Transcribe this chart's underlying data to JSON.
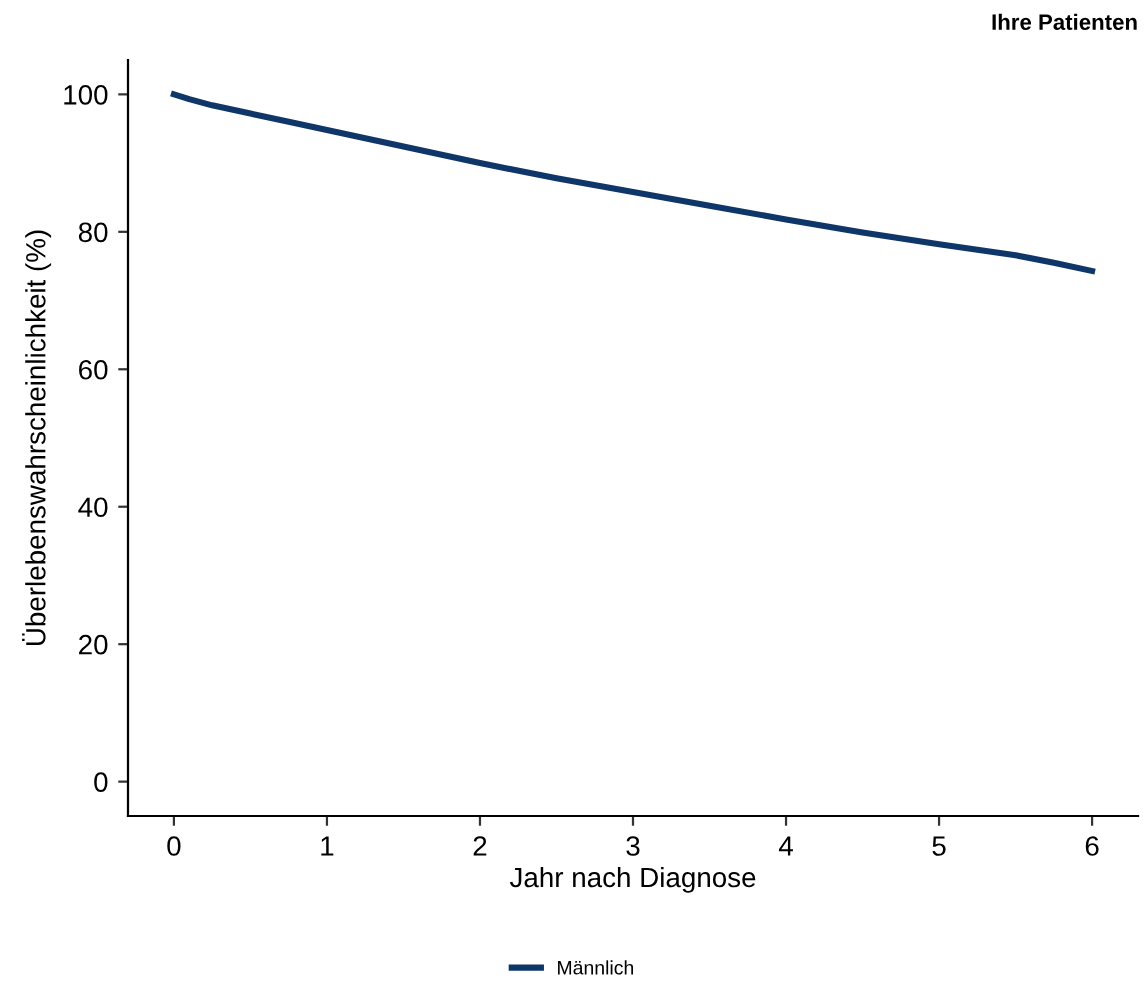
{
  "chart_data": {
    "type": "line",
    "title": "Ihre Patienten",
    "xlabel": "Jahr nach Diagnose",
    "ylabel": "Überlebenswahrscheinlichkeit (%)",
    "xlim": [
      -0.3,
      6.3
    ],
    "xticks": [
      0,
      1,
      2,
      3,
      4,
      5,
      6
    ],
    "ylim": [
      -5,
      105
    ],
    "yticks": [
      0,
      20,
      40,
      60,
      80,
      100
    ],
    "grid": false,
    "legend": "bottom",
    "line_style": "solid",
    "marker": "none",
    "series": [
      {
        "name": "Männlich",
        "color": "#0e3668",
        "x": [
          0,
          0.1,
          0.25,
          0.5,
          0.75,
          1,
          1.5,
          2,
          2.5,
          3,
          3.5,
          4,
          4.5,
          5,
          5.5,
          5.75,
          6
        ],
        "values": [
          100,
          99.3,
          98.4,
          97.2,
          96.0,
          94.8,
          92.4,
          90.0,
          87.8,
          85.8,
          83.8,
          81.8,
          79.9,
          78.2,
          76.6,
          75.5,
          74.3
        ]
      }
    ]
  }
}
